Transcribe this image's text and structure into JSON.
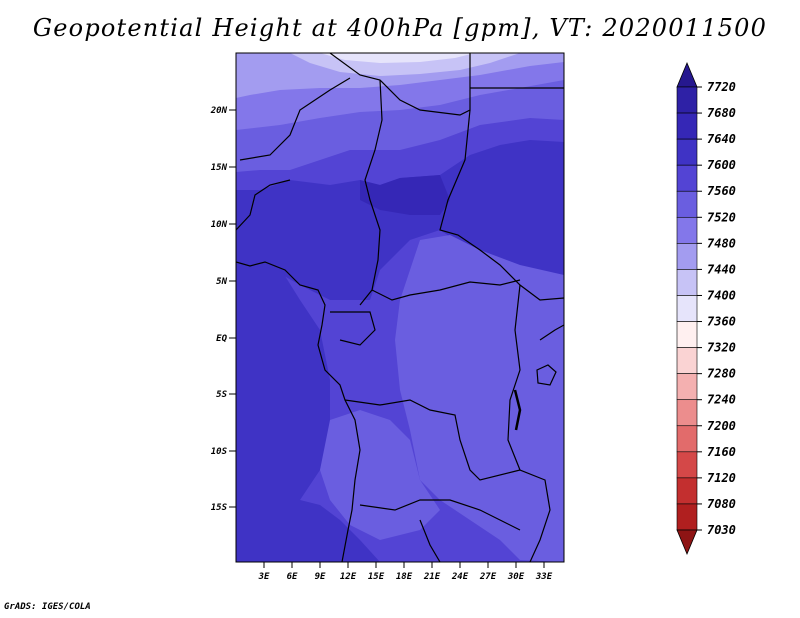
{
  "title": "Geopotential Height at 400hPa [gpm], VT: 2020011500",
  "credit": "GrADS: IGES/COLA",
  "map": {
    "type": "filled-contour",
    "lat_labels": [
      "20N",
      "15N",
      "10N",
      "5N",
      "EQ",
      "5S",
      "10S",
      "15S"
    ],
    "lon_labels": [
      "3E",
      "6E",
      "9E",
      "12E",
      "15E",
      "18E",
      "21E",
      "24E",
      "27E",
      "30E",
      "33E"
    ]
  },
  "colorbar": {
    "labels": [
      "7720",
      "7680",
      "7640",
      "7600",
      "7560",
      "7520",
      "7480",
      "7440",
      "7400",
      "7360",
      "7320",
      "7280",
      "7240",
      "7200",
      "7160",
      "7120",
      "7080",
      "7030"
    ],
    "colors": [
      "#26188f",
      "#2e21a6",
      "#3527b6",
      "#3f33c5",
      "#5344d4",
      "#6a5ee0",
      "#8377ea",
      "#a39cf0",
      "#c7c3f6",
      "#e6e4fb",
      "#fff0f0",
      "#fad3d3",
      "#f4b0b0",
      "#ec8d8d",
      "#e26b6b",
      "#d44848",
      "#c32f2f",
      "#b01f1f",
      "#8e1414"
    ]
  }
}
